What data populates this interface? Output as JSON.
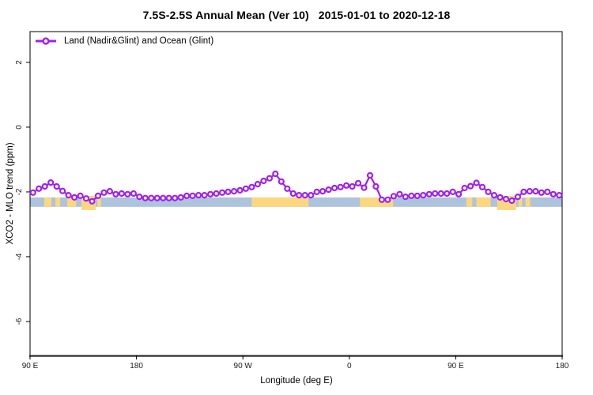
{
  "title": "7.5S-2.5S Annual Mean (Ver 10)   2015-01-01 to 2020-12-18",
  "axes": {
    "xlabel": "Longitude (deg E)",
    "ylabel": "XCO2 - MLO trend (ppm)"
  },
  "legend": {
    "label": "Land (Nadir&Glint) and Ocean (Glint)"
  },
  "colors": {
    "series": "#A020F0",
    "marker_fill": "#ffffff",
    "ocean_band": "#AEC3DC",
    "land_band": "#FBD87F",
    "axis_line": "#3f3f3f",
    "plot_border": "#000000",
    "tick_text": "#1a1a1a"
  },
  "chart_data": {
    "type": "line",
    "title": "7.5S-2.5S Annual Mean (Ver 10)   2015-01-01 to 2020-12-18",
    "xlabel": "Longitude (deg E)",
    "ylabel": "XCO2 - MLO trend (ppm)",
    "xlim": [
      90,
      540
    ],
    "ylim": [
      -7.05,
      2.95
    ],
    "grid": false,
    "legend_position": "top-left",
    "x_ticks": [
      {
        "value": 90,
        "label": "90 E"
      },
      {
        "value": 180,
        "label": "180"
      },
      {
        "value": 270,
        "label": "90 W"
      },
      {
        "value": 360,
        "label": "0"
      },
      {
        "value": 450,
        "label": "90 E"
      },
      {
        "value": 540,
        "label": "180"
      }
    ],
    "y_ticks": [
      {
        "value": 2,
        "label": "2"
      },
      {
        "value": 0,
        "label": "0"
      },
      {
        "value": -2,
        "label": "-2"
      },
      {
        "value": -4,
        "label": "-4"
      },
      {
        "value": -6,
        "label": "-6"
      }
    ],
    "surface_band": {
      "description": "land/ocean surface strip along latitude band",
      "top": -2.17,
      "bottom": -2.46,
      "tall_top": -2.12,
      "tall_bottom": -2.56,
      "land_segments": [
        [
          102,
          108,
          0
        ],
        [
          111.5,
          115.5,
          0
        ],
        [
          121.5,
          129,
          0
        ],
        [
          133.5,
          145.5,
          1
        ],
        [
          147,
          150,
          0
        ],
        [
          277.5,
          325.5,
          0
        ],
        [
          369,
          397,
          0
        ],
        [
          459,
          464,
          0
        ],
        [
          467.5,
          479.5,
          0
        ],
        [
          485,
          501,
          1
        ],
        [
          503,
          506,
          0
        ],
        [
          509,
          513,
          0
        ]
      ]
    },
    "series": [
      {
        "name": "Land (Nadir&Glint) and Ocean (Glint)",
        "marker": "open-circle",
        "points": [
          [
            92.5,
            -2.02
          ],
          [
            97.5,
            -1.9
          ],
          [
            102.5,
            -1.83
          ],
          [
            107.5,
            -1.71
          ],
          [
            112.5,
            -1.83
          ],
          [
            117.5,
            -1.97
          ],
          [
            122.5,
            -2.1
          ],
          [
            127.5,
            -2.17
          ],
          [
            132.5,
            -2.12
          ],
          [
            137.5,
            -2.2
          ],
          [
            142.5,
            -2.29
          ],
          [
            147.5,
            -2.12
          ],
          [
            152.5,
            -2.02
          ],
          [
            157.5,
            -1.98
          ],
          [
            162.5,
            -2.07
          ],
          [
            167.5,
            -2.05
          ],
          [
            172.5,
            -2.07
          ],
          [
            177.5,
            -2.05
          ],
          [
            182.5,
            -2.15
          ],
          [
            187.5,
            -2.19
          ],
          [
            192.5,
            -2.19
          ],
          [
            197.5,
            -2.19
          ],
          [
            202.5,
            -2.19
          ],
          [
            207.5,
            -2.19
          ],
          [
            212.5,
            -2.19
          ],
          [
            217.5,
            -2.17
          ],
          [
            222.5,
            -2.12
          ],
          [
            227.5,
            -2.12
          ],
          [
            232.5,
            -2.1
          ],
          [
            237.5,
            -2.1
          ],
          [
            242.5,
            -2.07
          ],
          [
            247.5,
            -2.05
          ],
          [
            252.5,
            -2.02
          ],
          [
            257.5,
            -2.0
          ],
          [
            262.5,
            -1.98
          ],
          [
            267.5,
            -1.95
          ],
          [
            272.5,
            -1.9
          ],
          [
            277.5,
            -1.85
          ],
          [
            282.5,
            -1.76
          ],
          [
            287.5,
            -1.66
          ],
          [
            292.5,
            -1.58
          ],
          [
            297.5,
            -1.44
          ],
          [
            302.5,
            -1.68
          ],
          [
            307.5,
            -1.9
          ],
          [
            312.5,
            -2.05
          ],
          [
            317.5,
            -2.1
          ],
          [
            322.5,
            -2.1
          ],
          [
            327.5,
            -2.1
          ],
          [
            332.5,
            -2.0
          ],
          [
            337.5,
            -1.98
          ],
          [
            342.5,
            -1.93
          ],
          [
            347.5,
            -1.88
          ],
          [
            352.5,
            -1.85
          ],
          [
            357.5,
            -1.8
          ],
          [
            362.5,
            -1.83
          ],
          [
            367.5,
            -1.73
          ],
          [
            372.5,
            -1.87
          ],
          [
            377.5,
            -1.49
          ],
          [
            382.5,
            -1.83
          ],
          [
            387.5,
            -2.24
          ],
          [
            392.5,
            -2.24
          ],
          [
            397.5,
            -2.13
          ],
          [
            402.5,
            -2.07
          ],
          [
            407.5,
            -2.15
          ],
          [
            412.5,
            -2.12
          ],
          [
            417.5,
            -2.12
          ],
          [
            422.5,
            -2.1
          ],
          [
            427.5,
            -2.07
          ],
          [
            432.5,
            -2.05
          ],
          [
            437.5,
            -2.05
          ],
          [
            442.5,
            -2.05
          ],
          [
            447.5,
            -2.0
          ],
          [
            452.5,
            -2.07
          ],
          [
            457.5,
            -1.88
          ],
          [
            462.5,
            -1.82
          ],
          [
            467.5,
            -1.72
          ],
          [
            472.5,
            -1.85
          ],
          [
            477.5,
            -2.0
          ],
          [
            482.5,
            -2.1
          ],
          [
            487.5,
            -2.17
          ],
          [
            492.5,
            -2.22
          ],
          [
            497.5,
            -2.27
          ],
          [
            502.5,
            -2.15
          ],
          [
            507.5,
            -2.0
          ],
          [
            512.5,
            -1.98
          ],
          [
            517.5,
            -1.98
          ],
          [
            522.5,
            -2.02
          ],
          [
            527.5,
            -2.0
          ],
          [
            532.5,
            -2.07
          ],
          [
            537.5,
            -2.1
          ]
        ]
      }
    ]
  }
}
